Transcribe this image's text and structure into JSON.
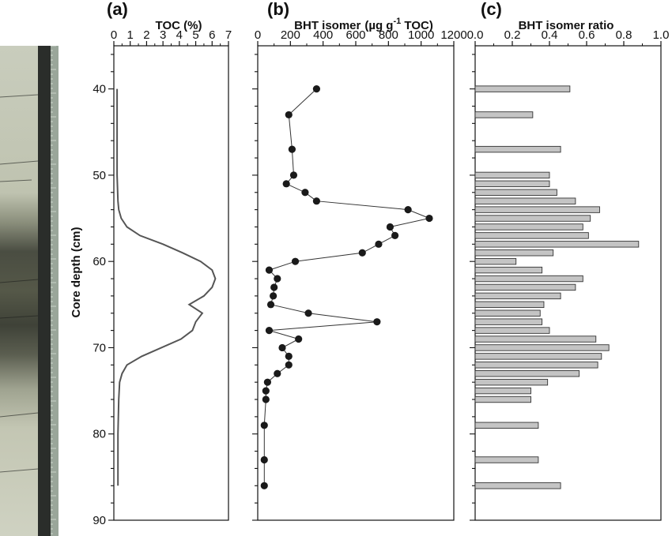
{
  "chart_data": [
    {
      "panel": "(a)",
      "type": "line",
      "title": "TOC (%)",
      "ylabel": "Core depth (cm)",
      "xlim": [
        0,
        7
      ],
      "ylim": [
        90,
        35
      ],
      "xticks": [
        "0",
        "1",
        "2",
        "3",
        "4",
        "5",
        "6",
        "7"
      ],
      "yticks": [
        "40",
        "50",
        "60",
        "70",
        "80",
        "90"
      ],
      "x": [
        0.2,
        0.2,
        0.25,
        0.3,
        0.45,
        0.8,
        1.6,
        3.0,
        4.2,
        5.3,
        6.0,
        6.2,
        6.0,
        5.5,
        4.6,
        5.4,
        5.0,
        4.8,
        4.1,
        1.7,
        0.8,
        0.5,
        0.35,
        0.3,
        0.25,
        0.25
      ],
      "y": [
        40,
        50,
        53,
        54,
        55,
        56,
        57,
        58,
        59,
        60,
        61,
        62,
        63,
        64,
        65,
        66,
        67,
        68,
        69,
        71,
        72,
        73,
        74,
        76,
        80,
        86
      ]
    },
    {
      "panel": "(b)",
      "type": "line",
      "markers": true,
      "title": "BHT isomer",
      "title_unit": "(µg g",
      "title_sup": "-1",
      "title_tail": " TOC)",
      "xlim": [
        0,
        1200
      ],
      "ylim": [
        90,
        35
      ],
      "xticks": [
        "0",
        "200",
        "400",
        "600",
        "800",
        "1000",
        "1200"
      ],
      "x": [
        360,
        190,
        210,
        220,
        175,
        290,
        360,
        920,
        1050,
        810,
        840,
        740,
        640,
        230,
        70,
        120,
        100,
        95,
        80,
        310,
        730,
        70,
        250,
        150,
        190,
        190,
        120,
        60,
        50,
        50,
        40,
        40,
        40
      ],
      "y": [
        40,
        43,
        47,
        50,
        51,
        52,
        53,
        54,
        55,
        56,
        57,
        58,
        59,
        60,
        61,
        62,
        63,
        64,
        65,
        66,
        67,
        68,
        69,
        70,
        71,
        72,
        73,
        74,
        75,
        76,
        79,
        83,
        86
      ]
    },
    {
      "panel": "(c)",
      "type": "bar",
      "orientation": "horizontal",
      "title": "BHT isomer ratio",
      "xlim": [
        0,
        1
      ],
      "ylim": [
        90,
        35
      ],
      "xticks": [
        "0.0",
        "0.2",
        "0.4",
        "0.6",
        "0.8",
        "1.0"
      ],
      "depths": [
        40,
        43,
        47,
        50,
        51,
        52,
        53,
        54,
        55,
        56,
        57,
        58,
        59,
        60,
        61,
        62,
        63,
        64,
        65,
        66,
        67,
        68,
        69,
        70,
        71,
        72,
        73,
        74,
        75,
        76,
        79,
        83,
        86
      ],
      "values": [
        0.51,
        0.31,
        0.46,
        0.4,
        0.4,
        0.44,
        0.54,
        0.67,
        0.62,
        0.58,
        0.61,
        0.88,
        0.42,
        0.22,
        0.36,
        0.58,
        0.54,
        0.46,
        0.37,
        0.35,
        0.36,
        0.4,
        0.65,
        0.72,
        0.68,
        0.66,
        0.56,
        0.39,
        0.3,
        0.3,
        0.34,
        0.34,
        0.46
      ]
    }
  ],
  "colors": {
    "axis": "#111111",
    "toc_line": "#555555",
    "marker": "#1a1a1a",
    "connector": "#333333",
    "bar_fill": "#c4c4c4",
    "bar_stroke": "#333333"
  },
  "core_photo": {
    "description_icon": "sediment-core-photo-icon"
  }
}
